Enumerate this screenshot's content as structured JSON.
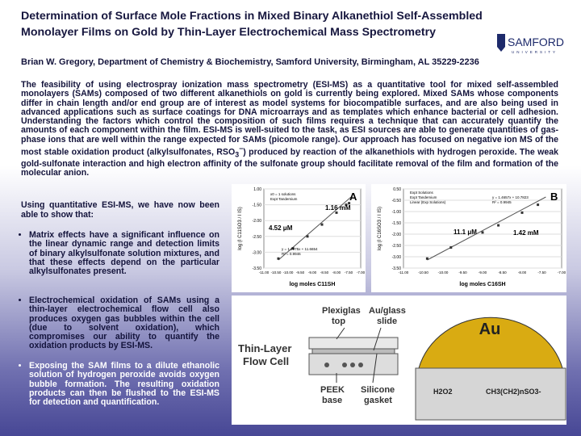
{
  "header": {
    "title": [
      "Determination of Surface Mole Fractions in Mixed Binary Alkanethiol Self-Assembled",
      "Monolayer Films on Gold by Thin-Layer Electrochemical Mass Spectrometry"
    ],
    "logo": "SAMFORD",
    "logo_sub": "UNIVERSITY",
    "author": "Brian W. Gregory, Department of Chemistry & Biochemistry, Samford University, Birmingham, AL 35229-2236"
  },
  "abstract": {
    "before": "The feasibility of using electrospray ionization mass spectrometry (ESI-MS) as a quantitative tool for mixed self-assembled monolayers (SAMs) composed of two different alkanethiols on gold is currently being explored. Mixed SAMs whose components differ in chain length and/or end group are of interest as model systems for biocompatible surfaces, and are also being used in advanced applications such as surface coatings for DNA microarrays and as templates which enhance bacterial or cell adhesion. Understanding the factors which control the composition of such films requires a technique that can accurately quantify the amounts of each component within the film. ESI-MS is well-suited to the task, as ESI sources are able to generate quantities of gas-phase ions that are well within the range expected for SAMs (picomole range). Our approach has focused on negative ion MS of the most stable oxidation product (alkylsulfonates, RSO",
    "sub": "3",
    "sup": "−",
    "after": ") produced by reaction of the alkanethiols with hydrogen peroxide. The weak gold-sulfonate interaction and high electron affinity of the sulfonate group should facilitate removal of the film and formation of the molecular anion."
  },
  "intro": "Using quantitative ESI-MS, we have now been able to show that:",
  "bullets": [
    "Matrix effects have a significant influence on the linear dynamic range and detection limits of binary alkylsulfonate solution mixtures, and that these effects depend on the particular alkylsulfonates present.",
    "Electrochemical oxidation of SAMs using a thin-layer electrochemical flow cell also produces oxygen gas bubbles within the cell (due to solvent oxidation), which compromises our ability to quantify the oxidation products by ESI-MS.",
    "Exposing the SAM films to a dilute ethanolic solution of hydrogen peroxide avoids oxygen bubble formation. The resulting oxidation products can then be flushed to the ESI-MS for detection and quantification."
  ],
  "figure_a": {
    "label": "A",
    "low": "4.52 μM",
    "high": "1.16 mM",
    "equation": "y = 1.2975x + 11.6654",
    "r2": "R² = 0.9946",
    "legend": [
      "x0 = 1 solutions",
      "Expt Tandemium"
    ],
    "y_title": "log (I C11SO3 / I IS)",
    "x_title": "log moles C11SH",
    "yticks": [
      "1.00",
      "-1.50",
      "-2.00",
      "-2.50",
      "-3.00",
      "-3.50"
    ],
    "xticks": [
      "-11.00",
      "-10.50",
      "-10.00",
      "-9.50",
      "-9.00",
      "-8.50",
      "-8.00",
      "-7.50",
      "-7.00"
    ]
  },
  "figure_b": {
    "label": "B",
    "low": "11.1 μM",
    "high": "1.42 mM",
    "equation": "y = 1.4657x + 10.7823",
    "r2": "R² = 0.9945",
    "legend": [
      "Expt Solutions",
      "Expt Tandemium",
      "Linear (Exp Solutions)"
    ],
    "y_title": "log (I C16SO3 / I IS)",
    "x_title": "log moles C16SH",
    "yticks": [
      "0.50",
      "-0.50",
      "-1.00",
      "-1.50",
      "-2.00",
      "-2.50",
      "-3.00",
      "-3.50"
    ],
    "xticks": [
      "-11.00",
      "-10.50",
      "-10.00",
      "-9.50",
      "-9.00",
      "-8.50",
      "-8.00",
      "-7.50",
      "-7.00"
    ]
  },
  "flow_cell": {
    "title": [
      "Thin-Layer",
      "Flow Cell"
    ],
    "top": [
      "Plexiglas",
      "top"
    ],
    "slide": [
      "Au/glass",
      "slide"
    ],
    "base": [
      "PEEK",
      "base"
    ],
    "gasket": [
      "Silicone",
      "gasket"
    ],
    "au": "Au",
    "peroxide": "H2O2",
    "product": "CH3(CH2)nSO3-"
  }
}
